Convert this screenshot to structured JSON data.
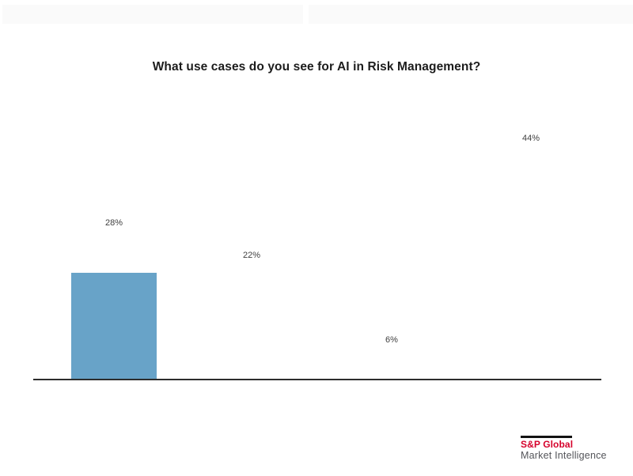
{
  "chart_data": {
    "type": "bar",
    "title": "What use cases do you see for AI in Risk Management?",
    "categories": [
      "",
      "",
      "",
      ""
    ],
    "values": [
      28,
      22,
      6,
      44
    ],
    "data_labels": [
      "28%",
      "22%",
      "6%",
      "44%"
    ],
    "xlabel": "",
    "ylabel": "",
    "grid": false,
    "legend": "none",
    "bar_color": "#68a3c8",
    "axis_color": "#2d2d2d",
    "label_color": "#404040",
    "bars_rendered": [
      true,
      false,
      false,
      false
    ],
    "render_note": "Only the first bar (28%) is drawn at partial height; the other three categories show value labels only (mid-animation frame)."
  },
  "branding": {
    "name": "S&P Global",
    "division": "Market Intelligence",
    "brand_color": "#d6002b"
  }
}
